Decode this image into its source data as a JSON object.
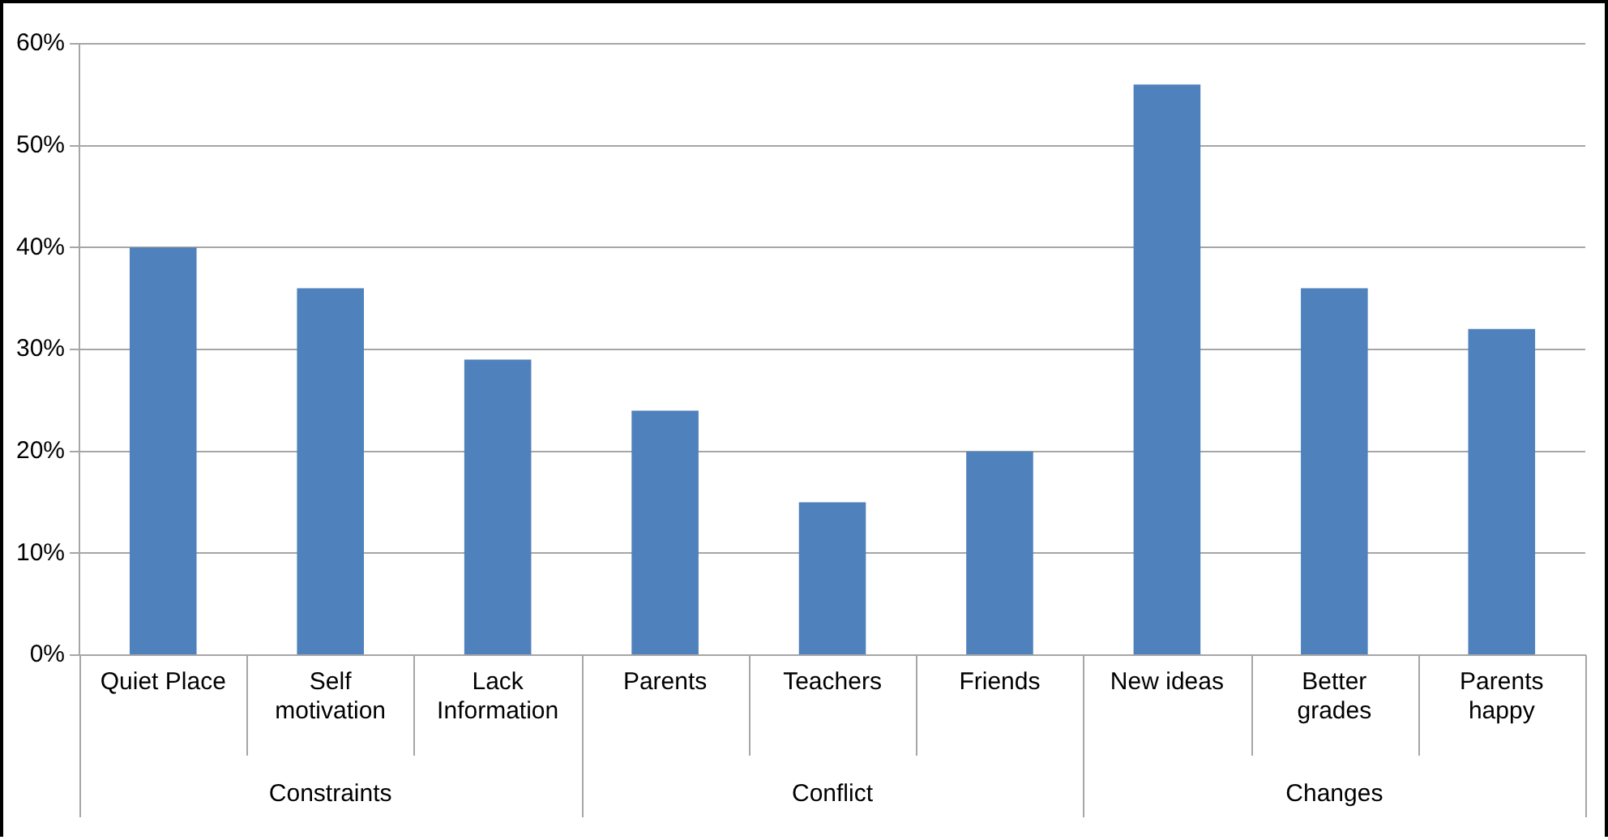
{
  "chart_data": {
    "type": "bar",
    "categories": [
      "Quiet Place",
      "Self motivation",
      "Lack Information",
      "Parents",
      "Teachers",
      "Friends",
      "New ideas",
      "Better grades",
      "Parents happy"
    ],
    "values": [
      40,
      36,
      29,
      24,
      15,
      20,
      56,
      36,
      32
    ],
    "color": "#4f81bd",
    "ylim": [
      0,
      60
    ],
    "yticks": [
      {
        "value": 0,
        "label": "0%"
      },
      {
        "value": 10,
        "label": "10%"
      },
      {
        "value": 20,
        "label": "20%"
      },
      {
        "value": 30,
        "label": "30%"
      },
      {
        "value": 40,
        "label": "40%"
      },
      {
        "value": 50,
        "label": "50%"
      },
      {
        "value": 60,
        "label": "60%"
      }
    ],
    "grid": "y",
    "annotations": [
      "Constraints",
      "Conflict",
      "Changes"
    ]
  }
}
